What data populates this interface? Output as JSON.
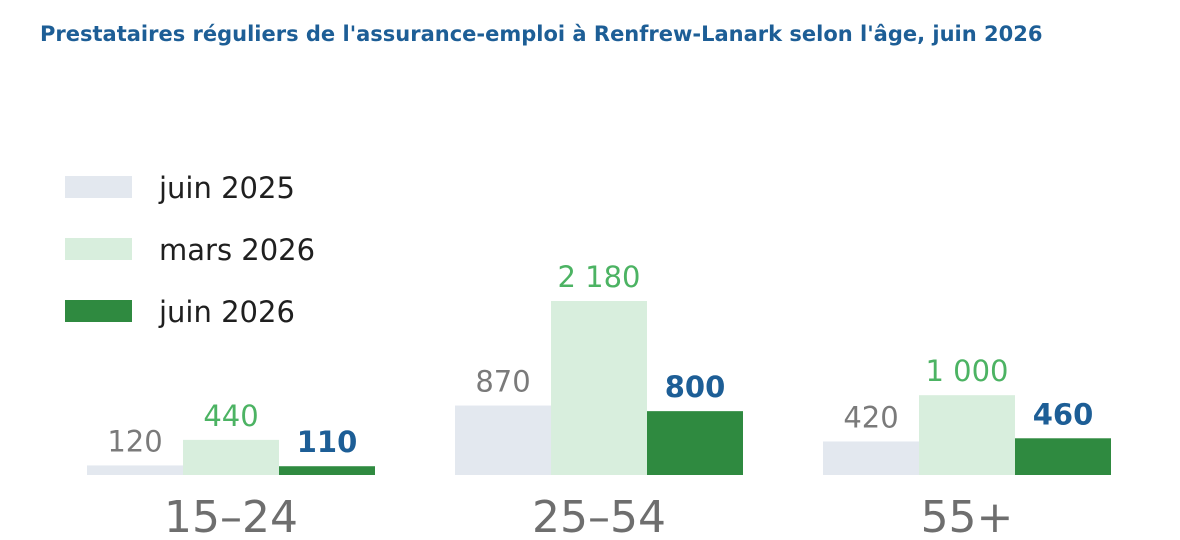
{
  "chart_data": {
    "type": "bar",
    "title": "Prestataires réguliers de l'assurance-emploi à Renfrew-Lanark selon l'âge, juin 2026",
    "categories": [
      "15–24",
      "25–54",
      "55+"
    ],
    "series": [
      {
        "name": "juin 2025",
        "values": [
          120,
          870,
          420
        ],
        "labels": [
          "120",
          "870",
          "420"
        ],
        "color": "#e3e8ef",
        "label_color": "#7a7a7a",
        "label_bold": false
      },
      {
        "name": "mars 2026",
        "values": [
          440,
          2180,
          1000
        ],
        "labels": [
          "440",
          "2 180",
          "1 000"
        ],
        "color": "#d8eedd",
        "label_color": "#4cb363",
        "label_bold": false
      },
      {
        "name": "juin 2026",
        "values": [
          110,
          800,
          460
        ],
        "labels": [
          "110",
          "800",
          "460"
        ],
        "color": "#2f8a40",
        "label_color": "#1d5e96",
        "label_bold": true
      }
    ],
    "xlabel": "",
    "ylabel": "",
    "ylim": [
      0,
      2180
    ],
    "grid": false,
    "legend": "top-left"
  }
}
